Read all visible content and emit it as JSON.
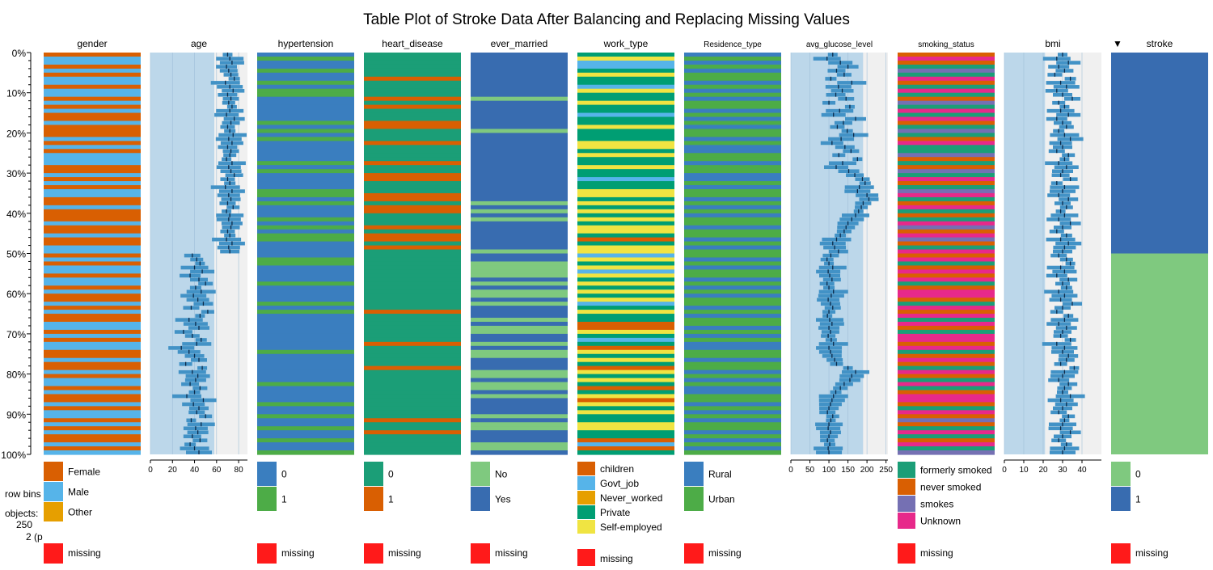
{
  "chart_data": {
    "type": "table",
    "title": "Table Plot of Stroke Data After Balancing and Replacing Missing Values",
    "sort_indicator": "▼",
    "sort_column": "stroke",
    "y_axis": {
      "ticks": [
        "0%",
        "10%",
        "20%",
        "30%",
        "40%",
        "50%",
        "60%",
        "70%",
        "80%",
        "90%",
        "100%"
      ]
    },
    "info": {
      "row_bins_label": "row bins",
      "objects_label": "objects:",
      "objects_value": "250",
      "bins_value": "2 (p"
    },
    "row_bins": 100,
    "missing_label": "missing",
    "colors": {
      "numeric_bar": "#4292c6",
      "numeric_bg_dark": "#bcd7ea",
      "numeric_bg_light": "#f0f0f0",
      "mean_tick": "#0b2a4a",
      "missing": "#ff1a1a"
    },
    "columns": [
      {
        "name": "gender",
        "kind": "categorical",
        "categories": [
          "Female",
          "Male",
          "Other"
        ],
        "colors": [
          "#d95f02",
          "#56b4e9",
          "#e69f00"
        ],
        "pattern": [
          0,
          1,
          1,
          0,
          1,
          0,
          1,
          1,
          0,
          1,
          1,
          0,
          1,
          0,
          1,
          0,
          0,
          1,
          0,
          0,
          0,
          1,
          0,
          1,
          0,
          1,
          1,
          1,
          0,
          0,
          1,
          0,
          1,
          0,
          1,
          1,
          0,
          0,
          1,
          0,
          0,
          0,
          1,
          0,
          0,
          1,
          0,
          0,
          1,
          1,
          0,
          1,
          0,
          1,
          1,
          0,
          1,
          1,
          0,
          1,
          0,
          0,
          1,
          0,
          1,
          0,
          0,
          1,
          1,
          0,
          1,
          0,
          1,
          1,
          0,
          0,
          1,
          0,
          0,
          1,
          0,
          1,
          1,
          0,
          1,
          0,
          0,
          1,
          0,
          1,
          1,
          0,
          1,
          0,
          1,
          0,
          0,
          1,
          0,
          1
        ]
      },
      {
        "name": "age",
        "kind": "numeric",
        "axis_ticks": [
          0,
          20,
          40,
          60,
          80
        ],
        "xlim": [
          0,
          88
        ],
        "bg_split": 58,
        "values": [
          70,
          72,
          74,
          69,
          71,
          73,
          76,
          68,
          72,
          75,
          70,
          73,
          71,
          74,
          72,
          69,
          76,
          73,
          70,
          72,
          75,
          71,
          74,
          70,
          73,
          72,
          69,
          74,
          71,
          73,
          76,
          70,
          72,
          68,
          74,
          71,
          73,
          70,
          75,
          69,
          72,
          71,
          74,
          73,
          70,
          72,
          69,
          74,
          71,
          72,
          38,
          42,
          45,
          40,
          47,
          36,
          44,
          50,
          41,
          46,
          39,
          43,
          48,
          37,
          52,
          45,
          35,
          41,
          44,
          30,
          38,
          46,
          42,
          28,
          35,
          40,
          44,
          32,
          47,
          38,
          43,
          41,
          36,
          45,
          40,
          33,
          48,
          39,
          44,
          42,
          50,
          37,
          46,
          41,
          43,
          38,
          45,
          36,
          40,
          44
        ]
      },
      {
        "name": "hypertension",
        "kind": "categorical",
        "categories": [
          "0",
          "1"
        ],
        "colors": [
          "#3a7ebf",
          "#4dac47"
        ],
        "pattern": [
          0,
          1,
          0,
          0,
          1,
          0,
          0,
          1,
          0,
          1,
          1,
          0,
          0,
          0,
          0,
          0,
          0,
          1,
          0,
          1,
          0,
          1,
          0,
          0,
          0,
          0,
          0,
          1,
          0,
          1,
          0,
          0,
          0,
          0,
          1,
          1,
          0,
          1,
          0,
          0,
          0,
          1,
          0,
          1,
          0,
          1,
          1,
          0,
          0,
          0,
          0,
          1,
          1,
          0,
          0,
          0,
          0,
          1,
          0,
          0,
          0,
          0,
          1,
          0,
          1,
          0,
          0,
          0,
          0,
          0,
          0,
          0,
          0,
          0,
          1,
          0,
          0,
          0,
          0,
          0,
          0,
          0,
          1,
          0,
          0,
          0,
          0,
          1,
          0,
          0,
          1,
          0,
          0,
          1,
          0,
          0,
          1,
          0,
          0,
          1
        ]
      },
      {
        "name": "heart_disease",
        "kind": "categorical",
        "categories": [
          "0",
          "1"
        ],
        "colors": [
          "#1b9e77",
          "#d95f02"
        ],
        "pattern": [
          0,
          0,
          0,
          0,
          0,
          0,
          1,
          0,
          0,
          0,
          0,
          1,
          0,
          1,
          0,
          0,
          0,
          1,
          1,
          0,
          0,
          0,
          1,
          0,
          0,
          0,
          0,
          1,
          0,
          0,
          1,
          1,
          0,
          0,
          0,
          1,
          1,
          0,
          1,
          1,
          0,
          0,
          0,
          1,
          0,
          1,
          1,
          0,
          1,
          0,
          0,
          0,
          0,
          0,
          0,
          0,
          0,
          0,
          0,
          0,
          0,
          0,
          0,
          0,
          1,
          0,
          0,
          0,
          0,
          0,
          0,
          0,
          1,
          0,
          0,
          0,
          0,
          0,
          1,
          0,
          0,
          0,
          0,
          0,
          0,
          0,
          0,
          0,
          0,
          0,
          0,
          1,
          0,
          0,
          1,
          0,
          0,
          0,
          0,
          0
        ]
      },
      {
        "name": "ever_married",
        "kind": "categorical",
        "categories": [
          "No",
          "Yes"
        ],
        "colors": [
          "#7fc97f",
          "#386cb0"
        ],
        "pattern": [
          1,
          1,
          1,
          1,
          1,
          1,
          1,
          1,
          1,
          1,
          1,
          0,
          1,
          1,
          1,
          1,
          1,
          1,
          1,
          0,
          1,
          1,
          1,
          1,
          1,
          1,
          1,
          1,
          1,
          1,
          1,
          1,
          1,
          1,
          1,
          1,
          1,
          0,
          1,
          0,
          1,
          0,
          1,
          1,
          1,
          1,
          1,
          1,
          1,
          0,
          1,
          1,
          0,
          0,
          0,
          0,
          1,
          0,
          1,
          0,
          0,
          1,
          0,
          1,
          1,
          1,
          0,
          1,
          0,
          0,
          1,
          1,
          0,
          1,
          0,
          0,
          1,
          1,
          1,
          0,
          0,
          1,
          0,
          0,
          1,
          0,
          1,
          1,
          1,
          1,
          0,
          1,
          0,
          0,
          1,
          1,
          1,
          0,
          0,
          1
        ]
      },
      {
        "name": "work_type",
        "kind": "categorical",
        "categories": [
          "children",
          "Govt_job",
          "Never_worked",
          "Private",
          "Self-employed"
        ],
        "colors": [
          "#d95f02",
          "#56b4e9",
          "#e69f00",
          "#009e73",
          "#f0e442"
        ],
        "pattern": [
          3,
          4,
          1,
          1,
          3,
          4,
          3,
          3,
          1,
          4,
          3,
          3,
          4,
          3,
          3,
          1,
          3,
          3,
          4,
          3,
          3,
          3,
          4,
          4,
          3,
          4,
          3,
          3,
          4,
          3,
          3,
          1,
          3,
          3,
          4,
          4,
          3,
          4,
          3,
          4,
          3,
          4,
          3,
          4,
          4,
          3,
          0,
          3,
          4,
          4,
          1,
          4,
          3,
          4,
          1,
          4,
          3,
          4,
          3,
          4,
          3,
          4,
          1,
          3,
          4,
          3,
          3,
          0,
          0,
          4,
          3,
          1,
          3,
          0,
          4,
          3,
          4,
          3,
          0,
          4,
          3,
          4,
          3,
          0,
          3,
          4,
          0,
          4,
          3,
          4,
          3,
          3,
          4,
          4,
          3,
          3,
          0,
          1,
          0,
          3
        ]
      },
      {
        "name": "Residence_type",
        "kind": "categorical",
        "categories": [
          "Rural",
          "Urban"
        ],
        "colors": [
          "#3a7ebf",
          "#4dac47"
        ],
        "pattern": [
          0,
          1,
          0,
          1,
          0,
          1,
          1,
          0,
          1,
          0,
          1,
          0,
          1,
          1,
          0,
          1,
          0,
          1,
          0,
          1,
          1,
          0,
          1,
          0,
          0,
          1,
          1,
          0,
          1,
          1,
          0,
          0,
          1,
          0,
          1,
          1,
          0,
          1,
          0,
          1,
          0,
          1,
          1,
          0,
          1,
          1,
          0,
          1,
          0,
          1,
          1,
          0,
          1,
          0,
          1,
          1,
          0,
          1,
          0,
          1,
          0,
          1,
          1,
          0,
          1,
          0,
          1,
          1,
          0,
          1,
          0,
          1,
          0,
          0,
          1,
          1,
          0,
          1,
          1,
          0,
          1,
          0,
          1,
          0,
          0,
          1,
          1,
          0,
          1,
          0,
          1,
          0,
          1,
          1,
          0,
          1,
          0,
          1,
          0,
          1
        ]
      },
      {
        "name": "avg_glucose_level",
        "kind": "numeric",
        "axis_ticks": [
          0,
          50,
          100,
          150,
          200,
          250
        ],
        "xlim": [
          0,
          255
        ],
        "bg_split": 190,
        "values": [
          110,
          95,
          130,
          150,
          120,
          140,
          105,
          160,
          125,
          135,
          118,
          145,
          100,
          155,
          128,
          112,
          170,
          138,
          122,
          148,
          165,
          132,
          108,
          142,
          158,
          126,
          175,
          136,
          119,
          152,
          168,
          188,
          195,
          180,
          175,
          200,
          205,
          190,
          185,
          178,
          170,
          160,
          150,
          145,
          140,
          130,
          120,
          110,
          115,
          125,
          105,
          95,
          100,
          110,
          98,
          102,
          108,
          95,
          100,
          112,
          106,
          98,
          104,
          110,
          100,
          96,
          102,
          108,
          100,
          104,
          98,
          106,
          112,
          100,
          104,
          108,
          115,
          120,
          150,
          170,
          160,
          155,
          140,
          130,
          118,
          112,
          108,
          104,
          100,
          96,
          110,
          105,
          100,
          98,
          104,
          100,
          96,
          102,
          98,
          100
        ]
      },
      {
        "name": "smoking_status",
        "kind": "categorical",
        "categories": [
          "formerly smoked",
          "never smoked",
          "smokes",
          "Unknown"
        ],
        "colors": [
          "#1b9e77",
          "#d95f02",
          "#7570b3",
          "#e7298a"
        ],
        "pattern": [
          1,
          3,
          1,
          0,
          2,
          0,
          3,
          1,
          0,
          3,
          0,
          1,
          2,
          0,
          3,
          0,
          3,
          1,
          0,
          2,
          0,
          1,
          3,
          0,
          0,
          2,
          1,
          0,
          1,
          2,
          0,
          3,
          1,
          0,
          2,
          3,
          0,
          1,
          3,
          0,
          1,
          0,
          3,
          2,
          1,
          3,
          2,
          1,
          0,
          3,
          1,
          3,
          0,
          1,
          3,
          1,
          3,
          0,
          1,
          3,
          3,
          1,
          0,
          3,
          1,
          3,
          0,
          3,
          1,
          0,
          3,
          3,
          1,
          3,
          0,
          1,
          3,
          1,
          0,
          3,
          1,
          0,
          3,
          0,
          1,
          3,
          3,
          1,
          0,
          3,
          1,
          2,
          1,
          0,
          3,
          0,
          1,
          3,
          0,
          2
        ]
      },
      {
        "name": "bmi",
        "kind": "numeric",
        "axis_ticks": [
          0,
          10,
          20,
          30,
          40
        ],
        "xlim": [
          0,
          50
        ],
        "bg_split": 21,
        "values": [
          30,
          27,
          33,
          28,
          31,
          26,
          34,
          29,
          32,
          27,
          30,
          35,
          28,
          31,
          29,
          33,
          27,
          30,
          32,
          28,
          31,
          34,
          29,
          30,
          27,
          33,
          31,
          28,
          32,
          30,
          29,
          34,
          27,
          31,
          30,
          28,
          33,
          30,
          32,
          29,
          31,
          28,
          34,
          30,
          27,
          32,
          29,
          33,
          31,
          30,
          28,
          32,
          34,
          29,
          31,
          27,
          33,
          30,
          32,
          28,
          31,
          29,
          35,
          30,
          27,
          33,
          31,
          28,
          32,
          30,
          29,
          34,
          27,
          31,
          30,
          33,
          32,
          29,
          36,
          31,
          30,
          28,
          33,
          31,
          30,
          34,
          29,
          32,
          30,
          28,
          33,
          31,
          30,
          29,
          34,
          30,
          28,
          32,
          31,
          30
        ]
      },
      {
        "name": "stroke",
        "kind": "categorical",
        "categories": [
          "0",
          "1"
        ],
        "colors": [
          "#7fc97f",
          "#386cb0"
        ],
        "split": 0.5,
        "top_category": 1,
        "bottom_category": 0
      }
    ]
  }
}
